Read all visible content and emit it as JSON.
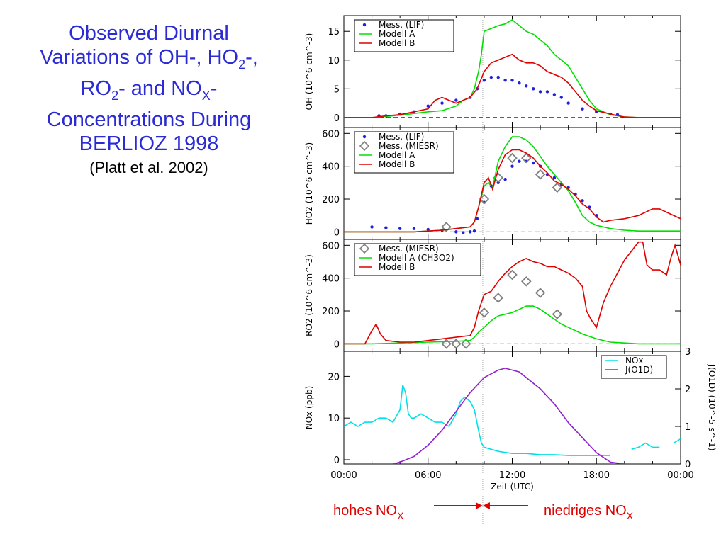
{
  "header": {
    "title_line1": "Observed Diurnal",
    "title_line2_a": "Variations of OH-, HO",
    "title_line2_sub": "2",
    "title_line2_b": "-,",
    "title_line3_a": "RO",
    "title_line3_sub": "2",
    "title_line3_b": "- and NO",
    "title_line3_sub2": "X",
    "title_line3_c": "-",
    "title_line4": "Concentrations During",
    "title_line5": "BERLIOZ 1998",
    "citation": "(Platt et al. 2002)"
  },
  "annotations": {
    "left": "hohes NO",
    "left_sub": "X",
    "right": "niedriges NO",
    "right_sub": "X"
  },
  "colors": {
    "title": "#2b2bd6",
    "meas": "#2020e0",
    "modell_a": "#00e000",
    "modell_b": "#e00000",
    "miesr": "#808080",
    "nox": "#00e0e8",
    "jo1d": "#9020d0",
    "annotation": "#e00000"
  },
  "chart_data": [
    {
      "type": "line",
      "panel": "OH",
      "ylabel": "OH (10^6 cm^-3)",
      "ylim": [
        -1,
        17
      ],
      "yticks": [
        0,
        5,
        10,
        15
      ],
      "series": [
        {
          "name": "Mess. (LIF)",
          "marker": "dots",
          "x": [
            2.5,
            3,
            4,
            5,
            6,
            7,
            8,
            9,
            9.5,
            10,
            10.5,
            11,
            11.5,
            12,
            12.5,
            13,
            13.5,
            14,
            14.5,
            15,
            15.5,
            16,
            17,
            18,
            19,
            19.5
          ],
          "values": [
            0.3,
            0.3,
            0.6,
            1,
            2,
            2.5,
            3,
            3.5,
            5,
            6.5,
            7,
            7,
            6.5,
            6.5,
            6,
            5.5,
            5,
            4.5,
            4.5,
            4,
            3.5,
            2.5,
            1.5,
            1,
            0.6,
            0.5
          ]
        },
        {
          "name": "Modell A",
          "x": [
            0,
            2,
            3,
            4,
            5,
            6,
            7,
            8,
            8.5,
            9,
            9.3,
            9.6,
            9.8,
            10,
            10.5,
            11,
            11.5,
            12,
            12.5,
            13,
            13.5,
            14,
            14.5,
            15,
            15.5,
            16,
            16.5,
            17,
            17.5,
            18,
            19,
            20,
            21,
            22,
            23,
            24
          ],
          "values": [
            0,
            0,
            0.2,
            0.4,
            0.7,
            1,
            1.2,
            2,
            3,
            3.5,
            5,
            8,
            11,
            15,
            15.5,
            16,
            16.3,
            17,
            16,
            15,
            14.5,
            13.5,
            12.5,
            11,
            10,
            9,
            7,
            5,
            3,
            1.5,
            0.5,
            0.1,
            0,
            0,
            0,
            0
          ]
        },
        {
          "name": "Modell B",
          "x": [
            0,
            2,
            3,
            4,
            5,
            6,
            6.5,
            7,
            7.5,
            8,
            8.5,
            9,
            9.5,
            10,
            10.5,
            11,
            11.5,
            12,
            12.5,
            13,
            13.5,
            14,
            14.5,
            15,
            15.5,
            16,
            16.5,
            17,
            17.5,
            18,
            19,
            20,
            21,
            22,
            23,
            24
          ],
          "values": [
            0,
            0,
            0.3,
            0.5,
            1,
            1.5,
            3,
            3.5,
            3,
            2.5,
            3,
            3.5,
            5,
            8,
            9.5,
            10,
            10.5,
            11,
            10,
            9.5,
            9.5,
            9,
            8,
            7.5,
            7,
            6,
            4.5,
            3,
            2,
            1.2,
            0.6,
            0.1,
            0,
            0,
            0,
            0
          ]
        }
      ]
    },
    {
      "type": "line",
      "panel": "HO2",
      "ylabel": "HO2 (10^6 cm^-3)",
      "ylim": [
        -20,
        610
      ],
      "yticks": [
        0,
        200,
        400,
        600
      ],
      "series": [
        {
          "name": "Mess. (LIF)",
          "marker": "dots",
          "x": [
            2,
            3,
            4,
            5,
            6,
            7,
            8,
            8.5,
            9,
            9.3,
            9.5,
            10,
            10.5,
            11,
            11.5,
            12,
            12.5,
            13,
            13.5,
            14,
            14.5,
            15,
            15.5,
            16,
            16.5,
            17,
            17.5,
            18
          ],
          "values": [
            30,
            25,
            20,
            20,
            15,
            10,
            0,
            -5,
            0,
            5,
            80,
            180,
            280,
            300,
            320,
            400,
            430,
            430,
            420,
            400,
            350,
            330,
            290,
            270,
            230,
            190,
            150,
            100
          ]
        },
        {
          "name": "Mess. (MIESR)",
          "marker": "diamond",
          "x": [
            7.3,
            10,
            11,
            12,
            13,
            14,
            15.2
          ],
          "values": [
            30,
            200,
            330,
            450,
            450,
            350,
            270
          ]
        },
        {
          "name": "Modell A",
          "x": [
            0,
            5,
            6,
            7,
            8,
            9,
            9.3,
            9.6,
            10,
            10.3,
            10.6,
            11,
            11.5,
            12,
            12.5,
            13,
            13.5,
            14,
            14.5,
            15,
            15.5,
            16,
            16.5,
            17,
            17.5,
            18,
            19,
            20,
            21,
            22,
            23,
            24
          ],
          "values": [
            0,
            0,
            5,
            10,
            20,
            30,
            60,
            150,
            280,
            300,
            270,
            430,
            520,
            580,
            580,
            560,
            520,
            460,
            400,
            350,
            300,
            250,
            180,
            100,
            60,
            40,
            20,
            10,
            5,
            5,
            5,
            5
          ]
        },
        {
          "name": "Modell B",
          "x": [
            0,
            5,
            6,
            7,
            8,
            9,
            9.3,
            9.6,
            10,
            10.3,
            10.6,
            11,
            11.5,
            12,
            12.5,
            13,
            13.5,
            14,
            14.5,
            15,
            15.5,
            16,
            16.5,
            17,
            17.5,
            18,
            18.5,
            19,
            20,
            21,
            22,
            22.5,
            23,
            24
          ],
          "values": [
            0,
            0,
            5,
            10,
            20,
            30,
            60,
            150,
            300,
            330,
            260,
            380,
            470,
            500,
            500,
            480,
            450,
            400,
            360,
            310,
            290,
            260,
            220,
            170,
            140,
            90,
            60,
            70,
            80,
            100,
            140,
            140,
            120,
            80
          ]
        }
      ]
    },
    {
      "type": "line",
      "panel": "RO2",
      "ylabel": "RO2 (10^6 cm^-3)",
      "ylim": [
        -20,
        610
      ],
      "yticks": [
        0,
        200,
        400,
        600
      ],
      "series": [
        {
          "name": "Mess. (MIESR)",
          "marker": "diamond",
          "x": [
            7.3,
            8,
            8.7,
            10,
            11,
            12,
            13,
            14,
            15.2
          ],
          "values": [
            0,
            0,
            0,
            190,
            280,
            420,
            380,
            310,
            180
          ]
        },
        {
          "name": "Modell A (CH3O2)",
          "x": [
            0,
            2,
            4,
            6,
            8,
            9,
            9.3,
            9.6,
            10,
            10.5,
            11,
            11.5,
            12,
            12.5,
            13,
            13.5,
            14,
            14.5,
            15,
            15.5,
            16,
            17,
            18,
            19,
            20,
            21,
            22,
            24
          ],
          "values": [
            0,
            0,
            5,
            10,
            15,
            20,
            40,
            70,
            100,
            140,
            170,
            180,
            190,
            210,
            230,
            230,
            210,
            180,
            150,
            120,
            100,
            60,
            30,
            10,
            5,
            0,
            0,
            0
          ]
        },
        {
          "name": "Modell B",
          "x": [
            0,
            1.5,
            2,
            2.3,
            2.6,
            3,
            4,
            5,
            6,
            7,
            8,
            9,
            9.3,
            9.6,
            10,
            10.5,
            11,
            11.5,
            12,
            12.5,
            13,
            13.5,
            14,
            14.5,
            15,
            15.5,
            16,
            16.5,
            17,
            17.3,
            17.6,
            18,
            18.5,
            19,
            19.5,
            20,
            21,
            21.3,
            21.6,
            22,
            22.5,
            23,
            23.3,
            23.6,
            24
          ],
          "values": [
            0,
            0,
            80,
            120,
            60,
            20,
            10,
            10,
            20,
            30,
            40,
            50,
            100,
            200,
            300,
            320,
            380,
            430,
            470,
            500,
            520,
            500,
            490,
            470,
            470,
            450,
            430,
            400,
            350,
            200,
            150,
            100,
            250,
            350,
            430,
            510,
            620,
            620,
            480,
            450,
            450,
            420,
            520,
            600,
            480
          ]
        }
      ]
    },
    {
      "type": "line",
      "panel": "NOx",
      "ylabel": "NOx (ppb)",
      "y2label": "J(O1D) (10^-5 s^-1)",
      "ylim": [
        0,
        25
      ],
      "yticks": [
        0,
        10,
        20
      ],
      "y2lim": [
        0,
        3
      ],
      "y2ticks": [
        0,
        1,
        2,
        3
      ],
      "xlabel": "Zeit (UTC)",
      "xlim": [
        0,
        24
      ],
      "xticks": [
        "00:00",
        "06:00",
        "12:00",
        "18:00",
        "00:00"
      ],
      "series": [
        {
          "name": "NOx",
          "axis": "left",
          "x": [
            0,
            0.5,
            1,
            1.5,
            2,
            2.5,
            3,
            3.5,
            4,
            4.2,
            4.4,
            4.6,
            4.8,
            5,
            5.5,
            6,
            6.5,
            7,
            7.5,
            8,
            8.3,
            8.6,
            9,
            9.3,
            9.6,
            9.8,
            10,
            10.5,
            11,
            12,
            13,
            14,
            15,
            16,
            17,
            18,
            19,
            20,
            20.5,
            21,
            21.5,
            22,
            22.5,
            23,
            23.5,
            24
          ],
          "values": [
            8,
            9,
            8,
            9,
            9,
            10,
            10,
            9,
            12,
            18,
            16,
            11,
            10,
            10,
            11,
            10,
            9,
            9,
            8,
            11,
            14,
            15,
            14,
            12,
            7,
            4,
            3,
            2.5,
            2,
            1.5,
            1.5,
            1.2,
            1.2,
            1,
            1,
            1,
            1,
            null,
            2.5,
            3,
            4,
            3,
            3,
            null,
            4,
            5
          ]
        },
        {
          "name": "J(O1D)",
          "axis": "right",
          "x": [
            3.5,
            4,
            5,
            6,
            7,
            8,
            9,
            10,
            11,
            11.5,
            12,
            12.5,
            13,
            14,
            15,
            16,
            17,
            18,
            19,
            20
          ],
          "values": [
            0,
            0.05,
            0.2,
            0.5,
            0.9,
            1.4,
            1.9,
            2.3,
            2.5,
            2.55,
            2.5,
            2.45,
            2.3,
            2.0,
            1.6,
            1.1,
            0.7,
            0.3,
            0.05,
            0
          ]
        }
      ]
    }
  ]
}
